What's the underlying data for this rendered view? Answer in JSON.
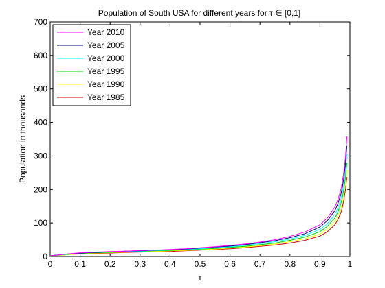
{
  "chart_data": {
    "type": "line",
    "title": "Population of South USA for different years for τ ∈ [0,1]",
    "xlabel": "τ",
    "ylabel": "Population in thousands",
    "xlim": [
      0,
      1
    ],
    "ylim": [
      0,
      700
    ],
    "x_ticks": [
      "0",
      "0.1",
      "0.2",
      "0.3",
      "0.4",
      "0.5",
      "0.6",
      "0.7",
      "0.8",
      "0.9",
      "1"
    ],
    "y_ticks": [
      "0",
      "100",
      "200",
      "300",
      "400",
      "500",
      "600",
      "700"
    ],
    "grid": false,
    "legend_position": "top-left",
    "x": [
      0,
      0.05,
      0.1,
      0.15,
      0.2,
      0.25,
      0.3,
      0.35,
      0.4,
      0.45,
      0.5,
      0.55,
      0.6,
      0.65,
      0.7,
      0.75,
      0.8,
      0.85,
      0.9,
      0.925,
      0.95,
      0.96,
      0.97,
      0.975,
      0.98,
      0.985,
      0.99
    ],
    "series": [
      {
        "name": "Year 2010",
        "color": "#ff00ff",
        "values": [
          2,
          7,
          11,
          13,
          15,
          16,
          18,
          19,
          21,
          23,
          26,
          29,
          33,
          37,
          43,
          50,
          60,
          73,
          95,
          115,
          148,
          170,
          200,
          225,
          255,
          295,
          358
        ]
      },
      {
        "name": "Year 2005",
        "color": "#000080",
        "values": [
          2,
          7,
          10,
          12,
          14,
          16,
          17,
          19,
          20,
          22,
          25,
          28,
          31,
          35,
          41,
          47,
          56,
          68,
          88,
          107,
          137,
          158,
          186,
          208,
          237,
          275,
          330
        ]
      },
      {
        "name": "Year 2000",
        "color": "#00ffff",
        "values": [
          2,
          6,
          10,
          12,
          13,
          15,
          16,
          18,
          19,
          21,
          23,
          26,
          29,
          33,
          38,
          44,
          52,
          63,
          81,
          98,
          126,
          145,
          172,
          193,
          220,
          255,
          305
        ]
      },
      {
        "name": "Year 1995",
        "color": "#00cc00",
        "values": [
          2,
          6,
          9,
          11,
          12,
          14,
          15,
          17,
          18,
          20,
          22,
          24,
          27,
          30,
          35,
          40,
          48,
          58,
          74,
          90,
          115,
          133,
          158,
          177,
          203,
          235,
          280
        ]
      },
      {
        "name": "Year 1990",
        "color": "#ffff00",
        "values": [
          1,
          5,
          8,
          10,
          11,
          13,
          14,
          15,
          17,
          18,
          20,
          22,
          25,
          28,
          32,
          37,
          44,
          53,
          67,
          82,
          105,
          121,
          144,
          162,
          186,
          216,
          258
        ]
      },
      {
        "name": "Year 1985",
        "color": "#cc0000",
        "values": [
          1,
          5,
          8,
          9,
          10,
          12,
          13,
          14,
          15,
          17,
          19,
          21,
          23,
          26,
          30,
          34,
          40,
          48,
          61,
          74,
          95,
          110,
          131,
          148,
          170,
          198,
          237
        ]
      }
    ]
  }
}
